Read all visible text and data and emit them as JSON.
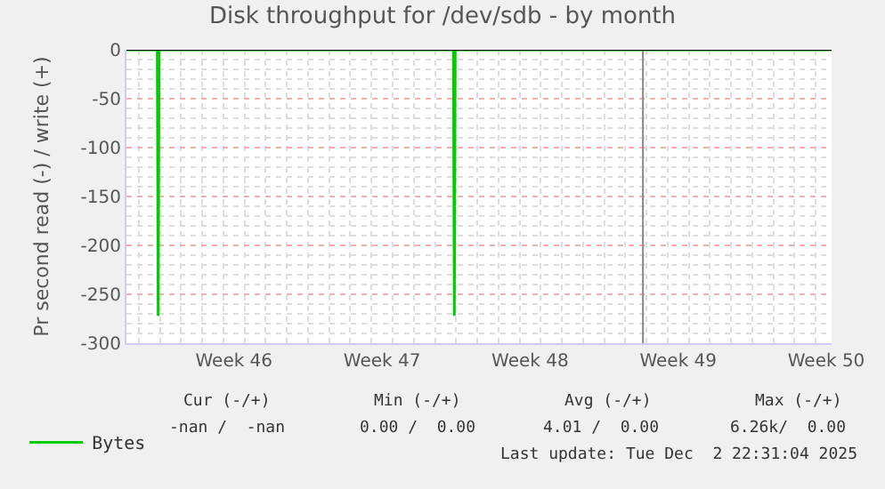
{
  "chart_data": {
    "type": "line",
    "title": "Disk throughput for /dev/sdb - by month",
    "ylabel": "Pr second read (-) / write (+)",
    "x": [
      "2025-11-08T10:00",
      "2025-11-09T21:00",
      "2025-11-09T22:00",
      "2025-11-09T23:00",
      "2025-11-23T21:00",
      "2025-11-23T22:00",
      "2025-11-23T23:00",
      "2025-12-11T18:00"
    ],
    "series": [
      {
        "name": "Bytes",
        "color": "#00cc00",
        "values": [
          0,
          0,
          -272,
          0,
          0,
          -272,
          0,
          0
        ]
      }
    ],
    "xlim": [
      "2025-11-08T10:00",
      "2025-12-11T18:00"
    ],
    "xticks": [
      {
        "value": "2025-11-13T12:00",
        "label": "Week 46"
      },
      {
        "value": "2025-11-20T12:00",
        "label": "Week 47"
      },
      {
        "value": "2025-11-27T12:00",
        "label": "Week 48"
      },
      {
        "value": "2025-12-04T12:00",
        "label": "Week 49"
      },
      {
        "value": "2025-12-11T12:00",
        "label": "Week 50"
      }
    ],
    "ylim": [
      -300,
      0
    ],
    "yticks": [
      0,
      -50,
      -100,
      -150,
      -200,
      -250,
      -300
    ],
    "ref_lines": [
      {
        "axis": "x",
        "value": "2025-12-02T20:00",
        "label": null,
        "color": "#888888"
      }
    ],
    "grid": true,
    "legend": "bottom left",
    "marker": "none",
    "line_style": "solid",
    "annotations": [
      "Cur (-/+)",
      "Min (-/+)",
      "Avg (-/+)",
      "Max (-/+)",
      "-nan /  -nan",
      "0.00 /  0.00",
      "4.01 /  0.00",
      "6.26k/  0.00",
      "Last update: Tue Dec  2 22:31:04 2025"
    ]
  }
}
